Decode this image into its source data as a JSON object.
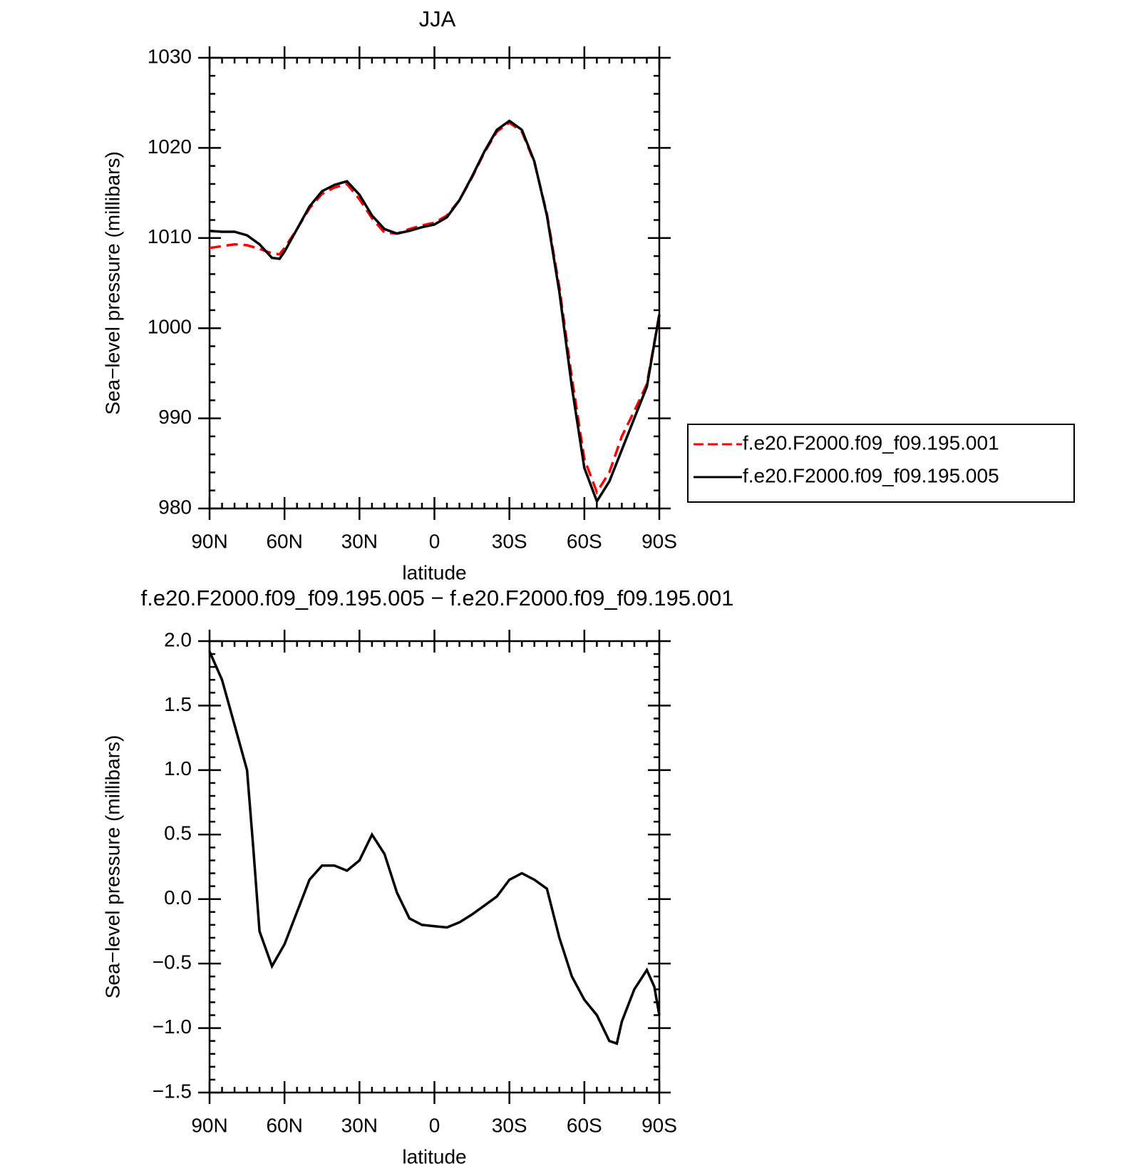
{
  "chart_data": [
    {
      "type": "line",
      "title": "JJA",
      "x_label": "latitude",
      "y_label": "Sea−level pressure (millibars)",
      "x": [
        90,
        85,
        80,
        75,
        70,
        65,
        62,
        60,
        55,
        50,
        45,
        40,
        35,
        30,
        25,
        20,
        15,
        10,
        5,
        0,
        -5,
        -10,
        -15,
        -20,
        -25,
        -30,
        -35,
        -40,
        -45,
        -50,
        -55,
        -60,
        -65,
        -70,
        -75,
        -80,
        -85,
        -90
      ],
      "series": [
        {
          "name": "f.e20.F2000.f09_f09.195.001",
          "color": "#ff0000",
          "dashed": true,
          "values": [
            1008.9,
            1009.1,
            1009.3,
            1009.2,
            1008.8,
            1008.3,
            1008.2,
            1008.9,
            1011,
            1013.3,
            1014.9,
            1015.6,
            1016.0,
            1014.3,
            1012.2,
            1010.6,
            1010.5,
            1011.0,
            1011.4,
            1011.7,
            1012.5,
            1014.2,
            1016.7,
            1019.5,
            1021.8,
            1022.8,
            1021.8,
            1018.4,
            1012.7,
            1004.5,
            994.5,
            985.5,
            981.8,
            984,
            988,
            990.8,
            993.8,
            1001.5
          ]
        },
        {
          "name": "f.e20.F2000.f09_f09.195.005",
          "color": "#000000",
          "dashed": false,
          "values": [
            1010.8,
            1010.7,
            1010.7,
            1010.3,
            1009.3,
            1007.8,
            1007.7,
            1008.5,
            1011,
            1013.5,
            1015.2,
            1015.9,
            1016.3,
            1014.8,
            1012.5,
            1011,
            1010.5,
            1010.8,
            1011.2,
            1011.5,
            1012.3,
            1014.2,
            1016.8,
            1019.6,
            1022,
            1023,
            1022,
            1018.5,
            1012.5,
            1004,
            993.5,
            984.5,
            980.8,
            983,
            986.5,
            990,
            993.5,
            1001.5
          ]
        }
      ],
      "xlim": [
        90,
        -90
      ],
      "xticks": [
        {
          "value": 90,
          "label": "90N"
        },
        {
          "value": 60,
          "label": "60N"
        },
        {
          "value": 30,
          "label": "30N"
        },
        0,
        {
          "value": -30,
          "label": "30S"
        },
        {
          "value": -60,
          "label": "60S"
        },
        {
          "value": -90,
          "label": "90S"
        }
      ],
      "ylim": [
        980,
        1030
      ],
      "yticks": [
        980,
        990,
        1000,
        1010,
        1020,
        1030
      ],
      "legend": "right"
    },
    {
      "type": "line",
      "title": "f.e20.F2000.f09_f09.195.005 − f.e20.F2000.f09_f09.195.001",
      "x_label": "latitude",
      "y_label": "Sea−level pressure (millibars)",
      "x": [
        90,
        85,
        80,
        75,
        72.5,
        70,
        65,
        60,
        55,
        50,
        45,
        40,
        35,
        30,
        25,
        20,
        15,
        10,
        5,
        0,
        -5,
        -10,
        -15,
        -20,
        -25,
        -30,
        -35,
        -40,
        -45,
        -50,
        -55,
        -60,
        -65,
        -70,
        -73,
        -75,
        -80,
        -85,
        -88,
        -90
      ],
      "series": [
        {
          "name": "f.e20.F2000.f09_f09.195.005 − f.e20.F2000.f09_f09.195.001",
          "color": "#000000",
          "dashed": false,
          "values": [
            1.92,
            1.7,
            1.35,
            1.0,
            0.4,
            -0.25,
            -0.52,
            -0.35,
            -0.1,
            0.15,
            0.26,
            0.26,
            0.22,
            0.3,
            0.5,
            0.35,
            0.05,
            -0.15,
            -0.2,
            -0.21,
            -0.22,
            -0.18,
            -0.12,
            -0.05,
            0.02,
            0.15,
            0.2,
            0.15,
            0.08,
            -0.3,
            -0.6,
            -0.78,
            -0.9,
            -1.1,
            -1.12,
            -0.95,
            -0.7,
            -0.55,
            -0.68,
            -0.9
          ]
        }
      ],
      "xlim": [
        90,
        -90
      ],
      "xticks": [
        {
          "value": 90,
          "label": "90N"
        },
        {
          "value": 60,
          "label": "60N"
        },
        {
          "value": 30,
          "label": "30N"
        },
        0,
        {
          "value": -30,
          "label": "30S"
        },
        {
          "value": -60,
          "label": "60S"
        },
        {
          "value": -90,
          "label": "90S"
        }
      ],
      "ylim": [
        -1.5,
        2.0
      ],
      "yticks": [
        {
          "value": -1.5,
          "label": "−1.5"
        },
        {
          "value": -1.0,
          "label": "−1.0"
        },
        {
          "value": -0.5,
          "label": "−0.5"
        },
        {
          "value": 0,
          "label": "0.0"
        },
        {
          "value": 0.5,
          "label": "0.5"
        },
        {
          "value": 1.0,
          "label": "1.0"
        },
        {
          "value": 1.5,
          "label": "1.5"
        },
        {
          "value": 2.0,
          "label": "2.0"
        }
      ]
    }
  ]
}
